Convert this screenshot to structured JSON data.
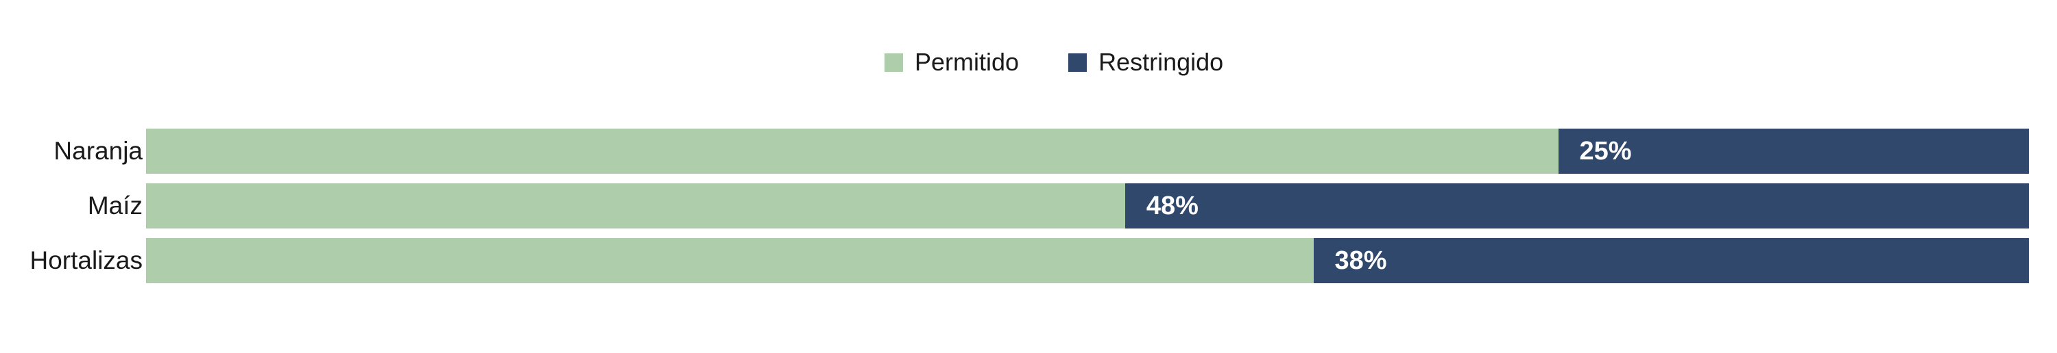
{
  "legend": {
    "position": "top-center",
    "items": [
      {
        "label": "Permitido",
        "color": "#aecdaa"
      },
      {
        "label": "Restringido",
        "color": "#2f486b"
      }
    ]
  },
  "chart_data": {
    "type": "bar",
    "orientation": "horizontal",
    "stacked": true,
    "unit": "percent",
    "title": "",
    "xlabel": "",
    "ylabel": "",
    "xlim": [
      0,
      100
    ],
    "grid": false,
    "legend_position": "top-center",
    "categories": [
      "Naranja",
      "Maíz",
      "Hortalizas"
    ],
    "series": [
      {
        "name": "Permitido",
        "color": "#aecdaa",
        "values": [
          75,
          52,
          62
        ]
      },
      {
        "name": "Restringido",
        "color": "#2f486b",
        "values": [
          25,
          48,
          38
        ]
      }
    ],
    "data_labels": {
      "series": "Restringido",
      "values": [
        "25%",
        "48%",
        "38%"
      ],
      "position": "inside-start",
      "color": "#ffffff"
    }
  },
  "colors": {
    "background": "#ffffff",
    "text": "#1a1a1a",
    "permitido": "#aecdaa",
    "restringido": "#2f486b",
    "data_label_text": "#ffffff"
  }
}
